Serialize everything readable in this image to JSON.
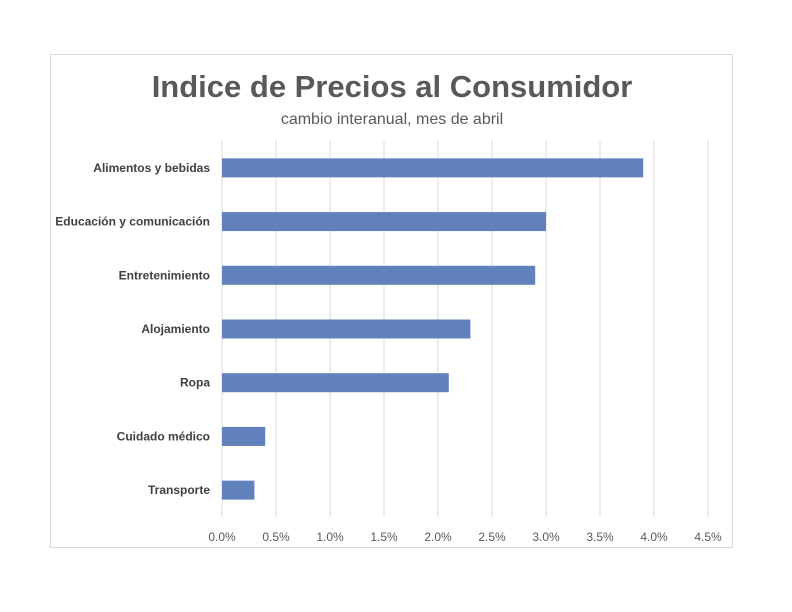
{
  "chart_data": {
    "type": "bar",
    "orientation": "horizontal",
    "title": "Indice de Precios al Consumidor",
    "subtitle": "cambio interanual, mes de abril",
    "categories": [
      "Alimentos y bebidas",
      "Educación y comunicación",
      "Entretenimiento",
      "Alojamiento",
      "Ropa",
      "Cuidado médico",
      "Transporte"
    ],
    "values": [
      3.9,
      3.0,
      2.9,
      2.3,
      2.1,
      0.4,
      0.3
    ],
    "xlim": [
      0,
      4.5
    ],
    "x_ticks": [
      0,
      0.5,
      1.0,
      1.5,
      2.0,
      2.5,
      3.0,
      3.5,
      4.0,
      4.5
    ],
    "x_tick_labels": [
      "0.0%",
      "0.5%",
      "1.0%",
      "1.5%",
      "2.0%",
      "2.5%",
      "3.0%",
      "3.5%",
      "4.0%",
      "4.5%"
    ],
    "grid": true,
    "legend": "none",
    "bar_color": "#6181bd"
  }
}
